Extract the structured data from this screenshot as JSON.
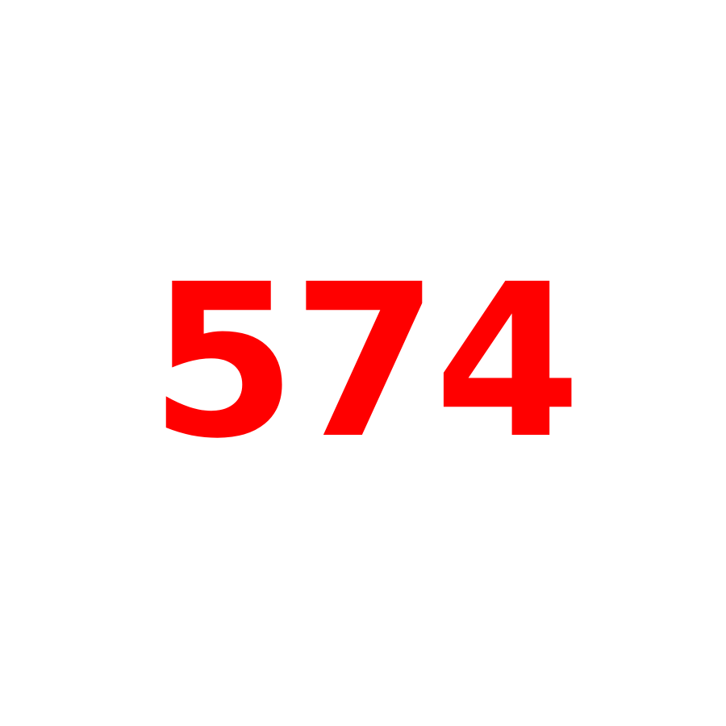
{
  "content": {
    "number": "574"
  },
  "colors": {
    "background": "#ffffff",
    "number": "#ff0000"
  }
}
